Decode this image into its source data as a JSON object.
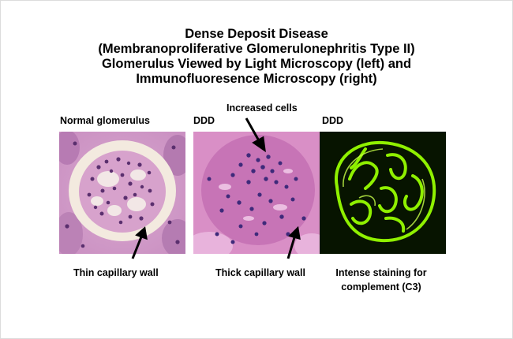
{
  "title": {
    "line1": "Dense Deposit Disease",
    "line2": "(Membranoproliferative Glomerulonephritis Type II)",
    "line3": "Glomerulus Viewed by Light Microscopy (left) and",
    "line4": "Immunofluoresence Microscopy (right)"
  },
  "panels": {
    "left_label": "Normal glomerulus",
    "middle_label": "DDD",
    "right_label": "DDD"
  },
  "annotations": {
    "increased_cells": "Increased cells",
    "thin_wall": "Thin capillary wall",
    "thick_wall": "Thick capillary wall",
    "staining_line1": "Intense staining for",
    "staining_line2": "complement (C3)"
  },
  "colors": {
    "he_background": "#e4b3d8",
    "he_cells": "#5a2f6e",
    "fluorescence": "#8ff000",
    "fluorescence_bg": "#071400"
  }
}
